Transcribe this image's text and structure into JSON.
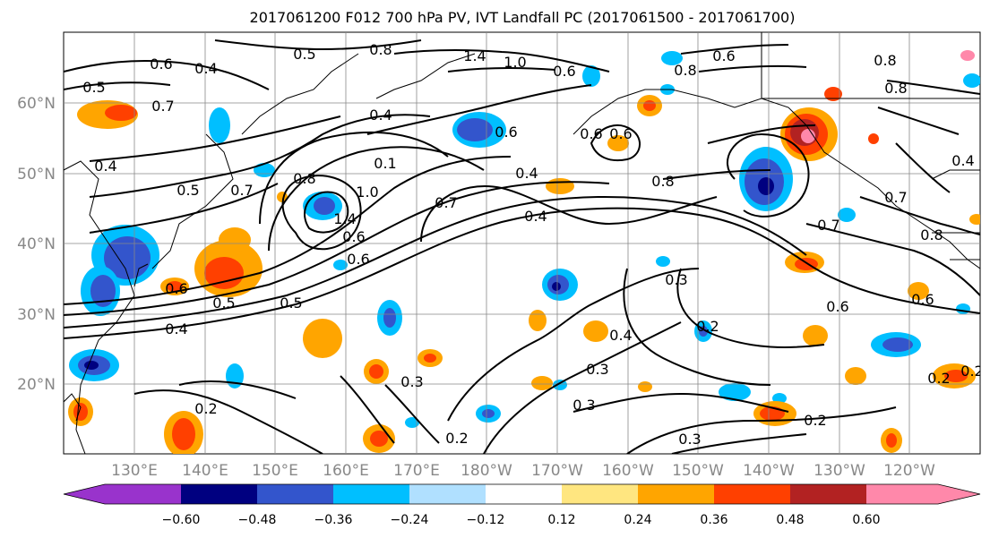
{
  "title": "2017061200 F012 700 hPa PV, IVT Landfall PC (2017061500 - 2017061700)",
  "map": {
    "lat_labels": [
      "60°N",
      "50°N",
      "40°N",
      "30°N",
      "20°N"
    ],
    "lon_labels": [
      "130°E",
      "140°E",
      "150°E",
      "160°E",
      "170°E",
      "180°W",
      "170°W",
      "160°W",
      "150°W",
      "140°W",
      "130°W",
      "120°W"
    ],
    "contour_labels": [
      "0.8",
      "0.5",
      "0.6",
      "0.4",
      "0.7",
      "0.5",
      "0.4",
      "0.6",
      "0.4",
      "0.5",
      "0.7",
      "0.1",
      "1.0",
      "1.4",
      "0.6",
      "0.6",
      "0.5",
      "0.5",
      "0.4",
      "0.7",
      "0.4",
      "0.6",
      "0.4",
      "0.8",
      "0.8",
      "0.7",
      "0.6",
      "0.3",
      "0.2",
      "0.4",
      "0.3",
      "0.3",
      "0.2",
      "0.2",
      "0.3",
      "0.2",
      "0.8",
      "0.6",
      "0.7",
      "0.8",
      "0.6",
      "0.6",
      "0.2",
      "0.3",
      "0.2",
      "1.4",
      "1.0",
      "0.6",
      "0.6",
      "0.8",
      "0.8",
      "0.4"
    ]
  },
  "colorbar": {
    "ticks": [
      "−0.60",
      "−0.48",
      "−0.36",
      "−0.24",
      "−0.12",
      "0.12",
      "0.24",
      "0.36",
      "0.48",
      "0.60"
    ],
    "colors": [
      "#9933cc",
      "#000080",
      "#3355cc",
      "#00bfff",
      "#b0e0ff",
      "#ffffff",
      "#ffe680",
      "#ffa500",
      "#ff4000",
      "#b22222",
      "#ff88aa"
    ]
  }
}
